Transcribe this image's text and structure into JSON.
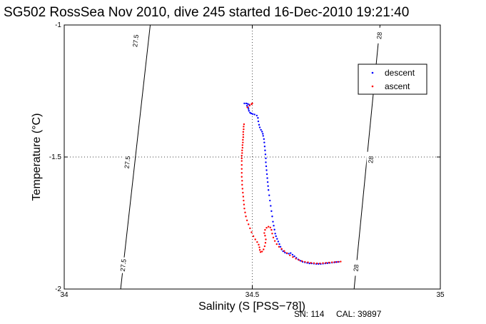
{
  "chart_data": {
    "type": "scatter",
    "title": "SG502 RossSea Nov 2010, dive 245 started 16-Dec-2010 19:21:40",
    "xlabel": "Salinity (S [PSS−78])",
    "ylabel": "Temperature (°C)",
    "xlim": [
      34,
      35
    ],
    "ylim": [
      -2,
      -1
    ],
    "x_ticks": [
      "34",
      "34.5",
      "35"
    ],
    "y_ticks": [
      "-1",
      "-1.5",
      "-2"
    ],
    "grid": "dotted",
    "legend_position": "top-right",
    "colors": {
      "descent": "#0000ff",
      "ascent": "#ff0000",
      "contour": "#000000"
    },
    "density_contours": [
      {
        "label": "27.5",
        "points": [
          [
            34.2287,
            -1.0
          ],
          [
            34.15,
            -2.0
          ]
        ],
        "label_positions": [
          [
            34.19,
            -1.06
          ],
          [
            34.168,
            -1.52
          ],
          [
            34.157,
            -1.91
          ]
        ]
      },
      {
        "label": "28",
        "points": [
          [
            34.8397,
            -1.0
          ],
          [
            34.7707,
            -2.0
          ]
        ],
        "label_positions": [
          [
            34.838,
            -1.04
          ],
          [
            34.8155,
            -1.51
          ],
          [
            34.776,
            -1.92
          ]
        ]
      }
    ],
    "series": [
      {
        "name": "descent",
        "points": [
          [
            34.479,
            -1.297
          ],
          [
            34.484,
            -1.297
          ],
          [
            34.488,
            -1.299
          ],
          [
            34.492,
            -1.302
          ],
          [
            34.486,
            -1.306
          ],
          [
            34.489,
            -1.312
          ],
          [
            34.49,
            -1.318
          ],
          [
            34.491,
            -1.325
          ],
          [
            34.494,
            -1.332
          ],
          [
            34.497,
            -1.335
          ],
          [
            34.501,
            -1.337
          ],
          [
            34.506,
            -1.339
          ],
          [
            34.512,
            -1.343
          ],
          [
            34.515,
            -1.352
          ],
          [
            34.516,
            -1.365
          ],
          [
            34.518,
            -1.378
          ],
          [
            34.52,
            -1.388
          ],
          [
            34.523,
            -1.397
          ],
          [
            34.526,
            -1.404
          ],
          [
            34.528,
            -1.412
          ],
          [
            34.529,
            -1.42
          ],
          [
            34.531,
            -1.432
          ],
          [
            34.532,
            -1.445
          ],
          [
            34.533,
            -1.46
          ],
          [
            34.534,
            -1.475
          ],
          [
            34.535,
            -1.49
          ],
          [
            34.536,
            -1.505
          ],
          [
            34.536,
            -1.52
          ],
          [
            34.537,
            -1.535
          ],
          [
            34.538,
            -1.55
          ],
          [
            34.539,
            -1.565
          ],
          [
            34.54,
            -1.58
          ],
          [
            34.541,
            -1.595
          ],
          [
            34.542,
            -1.61
          ],
          [
            34.543,
            -1.625
          ],
          [
            34.545,
            -1.645
          ],
          [
            34.547,
            -1.665
          ],
          [
            34.549,
            -1.685
          ],
          [
            34.551,
            -1.705
          ],
          [
            34.553,
            -1.725
          ],
          [
            34.555,
            -1.745
          ],
          [
            34.557,
            -1.76
          ],
          [
            34.559,
            -1.775
          ],
          [
            34.561,
            -1.79
          ],
          [
            34.563,
            -1.8
          ],
          [
            34.566,
            -1.81
          ],
          [
            34.569,
            -1.82
          ],
          [
            34.572,
            -1.83
          ],
          [
            34.575,
            -1.84
          ],
          [
            34.578,
            -1.85
          ],
          [
            34.582,
            -1.857
          ],
          [
            34.587,
            -1.862
          ],
          [
            34.592,
            -1.865
          ],
          [
            34.597,
            -1.866
          ],
          [
            34.602,
            -1.864
          ],
          [
            34.607,
            -1.87
          ],
          [
            34.612,
            -1.876
          ],
          [
            34.617,
            -1.882
          ],
          [
            34.622,
            -1.888
          ],
          [
            34.628,
            -1.893
          ],
          [
            34.634,
            -1.897
          ],
          [
            34.64,
            -1.899
          ],
          [
            34.646,
            -1.901
          ],
          [
            34.652,
            -1.903
          ],
          [
            34.658,
            -1.903
          ],
          [
            34.664,
            -1.904
          ],
          [
            34.67,
            -1.905
          ],
          [
            34.676,
            -1.905
          ],
          [
            34.682,
            -1.905
          ],
          [
            34.688,
            -1.904
          ],
          [
            34.694,
            -1.903
          ],
          [
            34.7,
            -1.902
          ],
          [
            34.706,
            -1.901
          ],
          [
            34.712,
            -1.9
          ],
          [
            34.718,
            -1.899
          ],
          [
            34.724,
            -1.898
          ],
          [
            34.73,
            -1.897
          ]
        ]
      },
      {
        "name": "ascent",
        "points": [
          [
            34.5,
            -1.297
          ],
          [
            34.498,
            -1.3
          ],
          [
            34.493,
            -1.305
          ],
          [
            34.487,
            -1.312
          ],
          [
            34.478,
            -1.376
          ],
          [
            34.477,
            -1.385
          ],
          [
            34.477,
            -1.395
          ],
          [
            34.476,
            -1.405
          ],
          [
            34.476,
            -1.415
          ],
          [
            34.476,
            -1.425
          ],
          [
            34.475,
            -1.435
          ],
          [
            34.475,
            -1.445
          ],
          [
            34.474,
            -1.455
          ],
          [
            34.474,
            -1.465
          ],
          [
            34.473,
            -1.475
          ],
          [
            34.473,
            -1.485
          ],
          [
            34.472,
            -1.495
          ],
          [
            34.472,
            -1.505
          ],
          [
            34.472,
            -1.515
          ],
          [
            34.472,
            -1.53
          ],
          [
            34.472,
            -1.545
          ],
          [
            34.472,
            -1.56
          ],
          [
            34.472,
            -1.575
          ],
          [
            34.473,
            -1.59
          ],
          [
            34.473,
            -1.605
          ],
          [
            34.474,
            -1.62
          ],
          [
            34.475,
            -1.635
          ],
          [
            34.476,
            -1.65
          ],
          [
            34.477,
            -1.665
          ],
          [
            34.478,
            -1.68
          ],
          [
            34.479,
            -1.695
          ],
          [
            34.481,
            -1.71
          ],
          [
            34.483,
            -1.725
          ],
          [
            34.486,
            -1.74
          ],
          [
            34.49,
            -1.755
          ],
          [
            34.494,
            -1.77
          ],
          [
            34.498,
            -1.785
          ],
          [
            34.503,
            -1.8
          ],
          [
            34.508,
            -1.812
          ],
          [
            34.513,
            -1.822
          ],
          [
            34.517,
            -1.832
          ],
          [
            34.519,
            -1.842
          ],
          [
            34.52,
            -1.852
          ],
          [
            34.522,
            -1.86
          ],
          [
            34.526,
            -1.858
          ],
          [
            34.53,
            -1.85
          ],
          [
            34.533,
            -1.838
          ],
          [
            34.535,
            -1.825
          ],
          [
            34.536,
            -1.812
          ],
          [
            34.534,
            -1.798
          ],
          [
            34.532,
            -1.788
          ],
          [
            34.534,
            -1.776
          ],
          [
            34.538,
            -1.768
          ],
          [
            34.543,
            -1.764
          ],
          [
            34.548,
            -1.767
          ],
          [
            34.551,
            -1.776
          ],
          [
            34.553,
            -1.79
          ],
          [
            34.556,
            -1.805
          ],
          [
            34.56,
            -1.818
          ],
          [
            34.565,
            -1.83
          ],
          [
            34.571,
            -1.84
          ],
          [
            34.578,
            -1.848
          ],
          [
            34.585,
            -1.856
          ],
          [
            34.592,
            -1.864
          ],
          [
            34.6,
            -1.872
          ],
          [
            34.608,
            -1.879
          ],
          [
            34.616,
            -1.885
          ],
          [
            34.624,
            -1.89
          ],
          [
            34.632,
            -1.894
          ],
          [
            34.64,
            -1.897
          ],
          [
            34.648,
            -1.899
          ],
          [
            34.656,
            -1.901
          ],
          [
            34.664,
            -1.902
          ],
          [
            34.672,
            -1.903
          ],
          [
            34.68,
            -1.903
          ],
          [
            34.688,
            -1.902
          ],
          [
            34.696,
            -1.901
          ],
          [
            34.704,
            -1.9
          ],
          [
            34.712,
            -1.899
          ],
          [
            34.72,
            -1.898
          ],
          [
            34.728,
            -1.897
          ],
          [
            34.735,
            -1.896
          ]
        ]
      }
    ],
    "legend": [
      {
        "label": "descent",
        "color": "#0000ff"
      },
      {
        "label": "ascent",
        "color": "#ff0000"
      }
    ]
  },
  "footer": {
    "sn": "SN: 114",
    "cal": "CAL: 39897"
  }
}
